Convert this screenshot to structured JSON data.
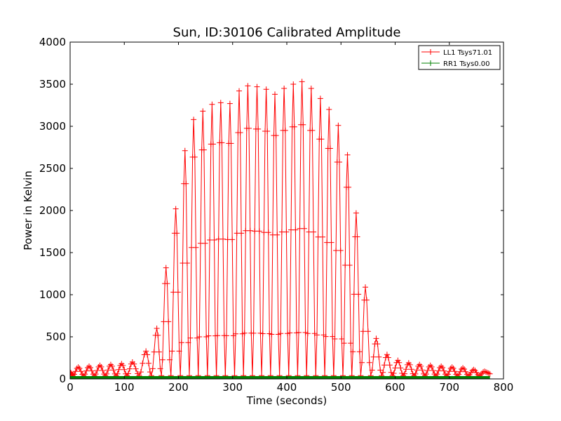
{
  "chart_data": {
    "type": "line",
    "title": "Sun, ID:30106 Calibrated Amplitude",
    "xlabel": "Time (seconds)",
    "ylabel": "Power in Kelvin",
    "xlim": [
      0,
      800
    ],
    "ylim": [
      0,
      4000
    ],
    "xticks": [
      "0",
      "100",
      "200",
      "300",
      "400",
      "500",
      "600",
      "700",
      "800"
    ],
    "yticks": [
      "0",
      "500",
      "1000",
      "1500",
      "2000",
      "2500",
      "3000",
      "3500",
      "4000"
    ],
    "grid": false,
    "legend_position": "top-right",
    "series": [
      {
        "name": "LL1 Tsys71.01",
        "color": "#ff0000",
        "marker": "plus",
        "description_peaks": "Oscillating signal with ~18 s period; envelope of peak values listed below",
        "peak_x": [
          15,
          35,
          55,
          75,
          95,
          115,
          140,
          160,
          177,
          195,
          212,
          228,
          245,
          262,
          278,
          295,
          312,
          328,
          345,
          362,
          378,
          395,
          412,
          428,
          445,
          462,
          478,
          495,
          512,
          528,
          545,
          565,
          585,
          605,
          625,
          645,
          665,
          685,
          705,
          725,
          745,
          765
        ],
        "peak_y": [
          140,
          150,
          160,
          170,
          180,
          200,
          330,
          600,
          1320,
          2020,
          2710,
          3080,
          3180,
          3260,
          3280,
          3270,
          3420,
          3480,
          3470,
          3440,
          3380,
          3450,
          3500,
          3530,
          3450,
          3330,
          3200,
          3010,
          2660,
          1970,
          1090,
          480,
          290,
          220,
          190,
          170,
          160,
          150,
          140,
          130,
          110,
          90
        ],
        "trough_y": 40
      },
      {
        "name": "RR1 Tsys0.00",
        "color": "#008000",
        "marker": "plus",
        "x_range": [
          0,
          775
        ],
        "value": 0
      }
    ]
  }
}
